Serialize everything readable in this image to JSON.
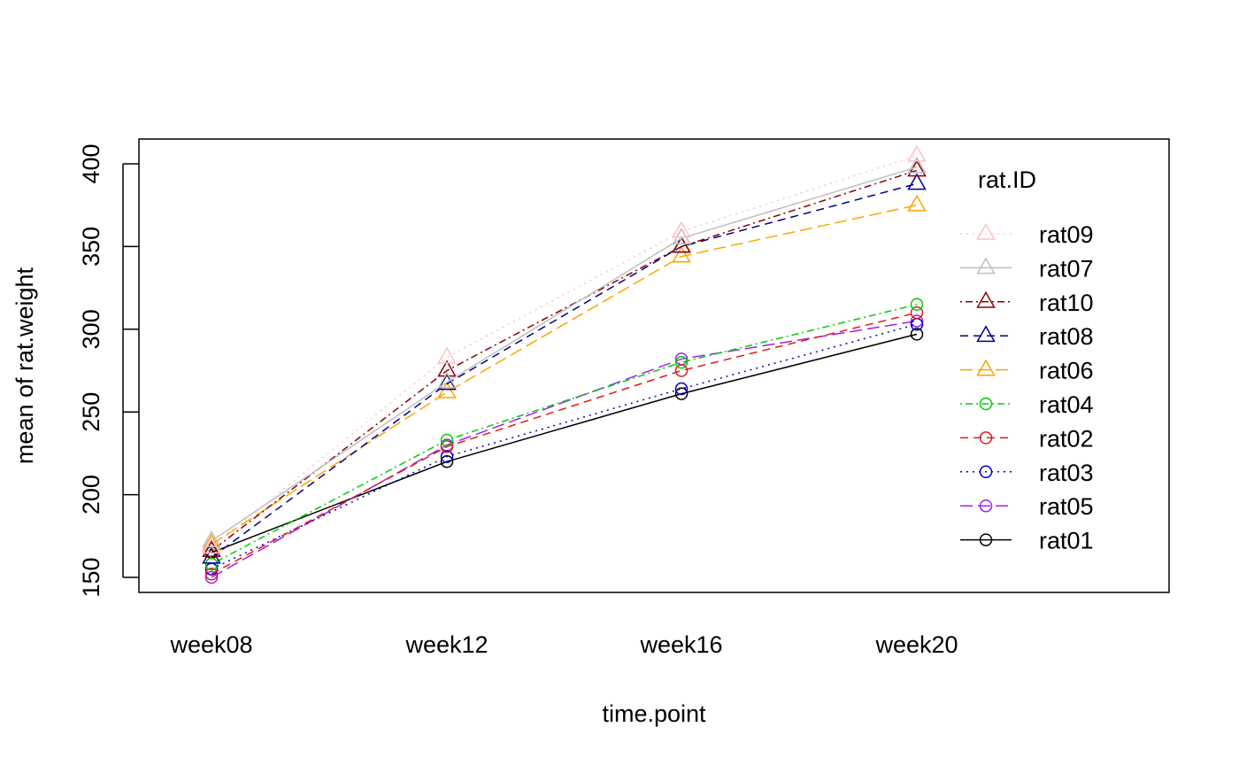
{
  "chart_data": {
    "type": "line",
    "title": "",
    "xlabel": "time.point",
    "ylabel": "mean of  rat.weight",
    "categories": [
      "week08",
      "week12",
      "week16",
      "week20"
    ],
    "yticks": [
      150,
      200,
      250,
      300,
      350,
      400
    ],
    "ylim": [
      150,
      400
    ],
    "grid": false,
    "legend": {
      "title": "rat.ID",
      "placement": "right"
    },
    "series": [
      {
        "name": "rat09",
        "values": [
          168,
          283,
          359,
          405
        ],
        "color": "#FFC0CB",
        "dash": "dotted",
        "marker": "triangle"
      },
      {
        "name": "rat07",
        "values": [
          172,
          268,
          355,
          398
        ],
        "color": "#BEBEBE",
        "dash": "solid",
        "marker": "triangle"
      },
      {
        "name": "rat10",
        "values": [
          166,
          275,
          350,
          396
        ],
        "color": "#8B0000",
        "dash": "dotdash",
        "marker": "triangle"
      },
      {
        "name": "rat08",
        "values": [
          162,
          267,
          350,
          388
        ],
        "color": "#00008B",
        "dash": "dashed",
        "marker": "triangle"
      },
      {
        "name": "rat06",
        "values": [
          170,
          262,
          344,
          375
        ],
        "color": "#FFA500",
        "dash": "longdash",
        "marker": "triangle"
      },
      {
        "name": "rat04",
        "values": [
          158,
          233,
          280,
          315
        ],
        "color": "#00CD00",
        "dash": "dotdash",
        "marker": "circle"
      },
      {
        "name": "rat02",
        "values": [
          152,
          229,
          275,
          310
        ],
        "color": "#E41A1C",
        "dash": "dashed",
        "marker": "circle"
      },
      {
        "name": "rat03",
        "values": [
          155,
          223,
          264,
          303
        ],
        "color": "#0000CD",
        "dash": "dotted",
        "marker": "circle"
      },
      {
        "name": "rat05",
        "values": [
          150,
          230,
          282,
          305
        ],
        "color": "#A020F0",
        "dash": "longdash",
        "marker": "circle"
      },
      {
        "name": "rat01",
        "values": [
          165,
          220,
          261,
          297
        ],
        "color": "#000000",
        "dash": "solid",
        "marker": "circle"
      }
    ]
  }
}
